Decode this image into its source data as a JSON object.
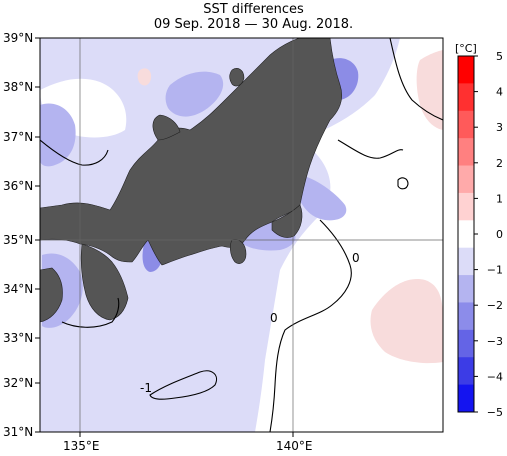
{
  "title": "SST differences",
  "subtitle": "09 Sep. 2018 — 30 Aug. 2018.",
  "map": {
    "lat_labels": [
      "39°N",
      "38°N",
      "37°N",
      "36°N",
      "35°N",
      "34°N",
      "33°N",
      "32°N",
      "31°N"
    ],
    "lon_labels": [
      "135°E",
      "140°E"
    ],
    "contour_labels": [
      "0",
      "0",
      "-1"
    ],
    "colors": {
      "land": "#555555",
      "ocean_neutral": "#ffffff",
      "cool_1": "#dcdcf8",
      "cool_2": "#b4b4f0",
      "cool_3": "#8c8ce6",
      "warm_1": "#f8dcdc"
    }
  },
  "colorbar": {
    "unit": "[°C]",
    "ticks": [
      "5",
      "4",
      "3",
      "2",
      "1",
      "0",
      "−1",
      "−2",
      "−3",
      "−4",
      "−5"
    ],
    "colors": [
      "#ff0000",
      "#ff3030",
      "#ff5a5a",
      "#ff8080",
      "#ffaaaa",
      "#ffd2d2",
      "#ffffff",
      "#dcdcf8",
      "#b4b4f0",
      "#8c8cea",
      "#6464e6",
      "#3c3ce6",
      "#1414f0"
    ]
  }
}
